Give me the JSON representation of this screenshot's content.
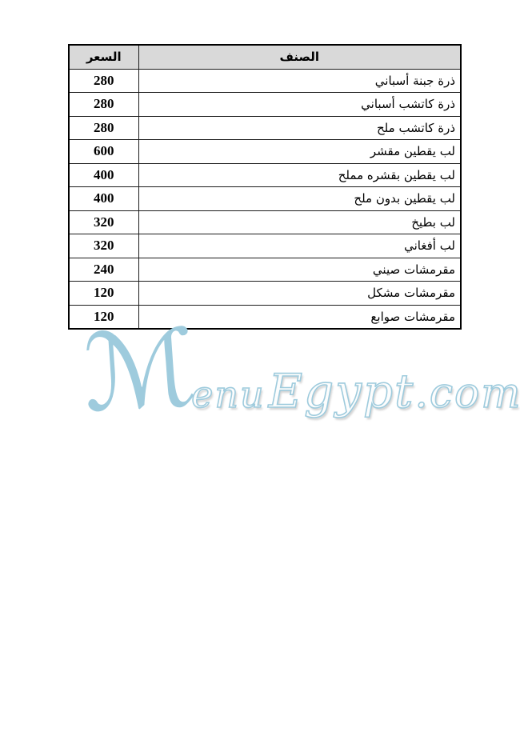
{
  "table": {
    "headers": {
      "price": "السعر",
      "item": "الصنف"
    },
    "rows": [
      {
        "price": "280",
        "item": "ذرة جبنة أسباني"
      },
      {
        "price": "280",
        "item": "ذرة كاتشب أسباني"
      },
      {
        "price": "280",
        "item": "ذرة كاتشب ملح"
      },
      {
        "price": "600",
        "item": "لب يقطين مقشر"
      },
      {
        "price": "400",
        "item": "لب يقطين بقشره مملح"
      },
      {
        "price": "400",
        "item": "لب يقطين بدون ملح"
      },
      {
        "price": "320",
        "item": "لب بطيخ"
      },
      {
        "price": "320",
        "item": "لب أفغاني"
      },
      {
        "price": "240",
        "item": "مقرمشات صيني"
      },
      {
        "price": "120",
        "item": "مقرمشات مشكل"
      },
      {
        "price": "120",
        "item": "مقرمشات صوابع"
      }
    ]
  },
  "watermark": {
    "full_text": "MenuEgypt.com",
    "initial": "ℳ",
    "part_enu": "enu",
    "part_egypt": "Egypt",
    "part_com": ".com",
    "color": "#9ecbdd"
  },
  "colors": {
    "header_bg": "#d9d9d9",
    "border": "#000000",
    "page_bg": "#ffffff"
  }
}
